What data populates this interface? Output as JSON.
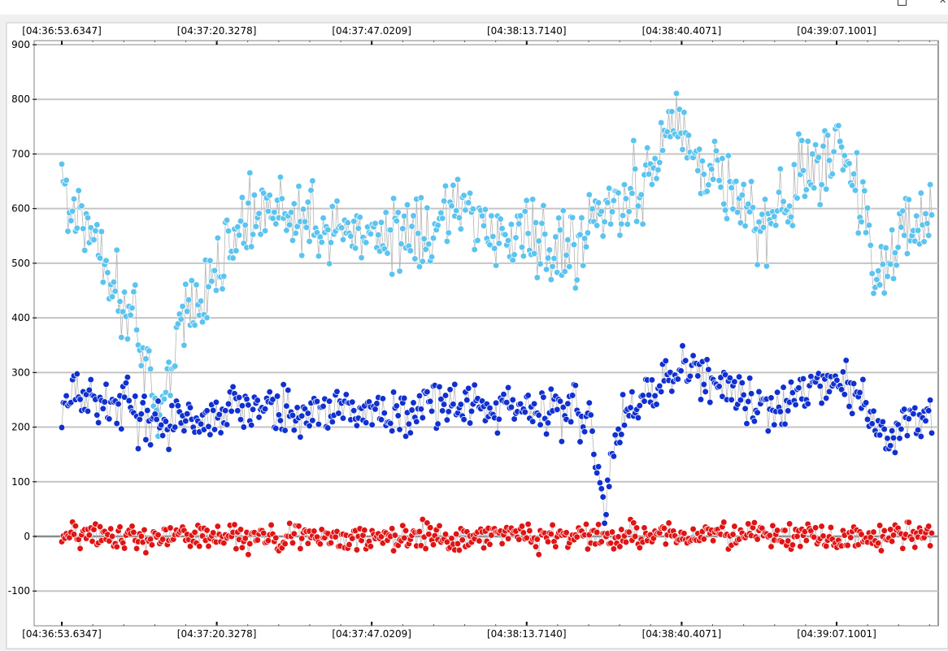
{
  "chart_data": {
    "type": "scatter",
    "ylim": [
      -120,
      900
    ],
    "yticks": [
      900,
      800,
      700,
      600,
      500,
      400,
      300,
      200,
      100,
      0,
      -100
    ],
    "xticks": [
      "[04:36:53.6347]",
      "[04:37:20.3278]",
      "[04:37:47.0209]",
      "[04:38:13.7140]",
      "[04:38:40.4071]",
      "[04:39:07.1001]"
    ],
    "grid": true,
    "markers": "circles joined by thin grey lines",
    "sample_count": 570,
    "series": [
      {
        "color": "#5bc4ef",
        "keypoints": [
          [
            0,
            650
          ],
          [
            3,
            640
          ],
          [
            5,
            560
          ],
          [
            8,
            600
          ],
          [
            12,
            590
          ],
          [
            20,
            560
          ],
          [
            28,
            510
          ],
          [
            35,
            470
          ],
          [
            42,
            420
          ],
          [
            48,
            390
          ],
          [
            52,
            330
          ],
          [
            58,
            300
          ],
          [
            63,
            220
          ],
          [
            68,
            280
          ],
          [
            72,
            310
          ],
          [
            76,
            380
          ],
          [
            85,
            420
          ],
          [
            95,
            450
          ],
          [
            110,
            540
          ],
          [
            125,
            580
          ],
          [
            140,
            600
          ],
          [
            155,
            590
          ],
          [
            170,
            560
          ],
          [
            185,
            560
          ],
          [
            200,
            560
          ],
          [
            220,
            560
          ],
          [
            240,
            560
          ],
          [
            255,
            590
          ],
          [
            265,
            600
          ],
          [
            280,
            560
          ],
          [
            300,
            550
          ],
          [
            320,
            540
          ],
          [
            335,
            530
          ],
          [
            345,
            560
          ],
          [
            355,
            610
          ],
          [
            365,
            620
          ],
          [
            380,
            650
          ],
          [
            392,
            720
          ],
          [
            405,
            760
          ],
          [
            415,
            700
          ],
          [
            430,
            660
          ],
          [
            445,
            610
          ],
          [
            455,
            560
          ],
          [
            465,
            580
          ],
          [
            475,
            600
          ],
          [
            482,
            670
          ],
          [
            495,
            680
          ],
          [
            510,
            700
          ],
          [
            525,
            610
          ],
          [
            530,
            490
          ],
          [
            540,
            500
          ],
          [
            550,
            570
          ],
          [
            569,
            570
          ]
        ],
        "noise": 55
      },
      {
        "color": "#1030d0",
        "keypoints": [
          [
            0,
            240
          ],
          [
            10,
            270
          ],
          [
            20,
            250
          ],
          [
            30,
            240
          ],
          [
            40,
            250
          ],
          [
            48,
            220
          ],
          [
            55,
            200
          ],
          [
            60,
            220
          ],
          [
            66,
            210
          ],
          [
            70,
            200
          ],
          [
            80,
            220
          ],
          [
            95,
            215
          ],
          [
            105,
            230
          ],
          [
            115,
            240
          ],
          [
            125,
            235
          ],
          [
            140,
            230
          ],
          [
            160,
            225
          ],
          [
            180,
            240
          ],
          [
            200,
            235
          ],
          [
            220,
            225
          ],
          [
            240,
            230
          ],
          [
            260,
            240
          ],
          [
            280,
            235
          ],
          [
            300,
            240
          ],
          [
            320,
            225
          ],
          [
            335,
            240
          ],
          [
            345,
            200
          ],
          [
            352,
            110
          ],
          [
            356,
            60
          ],
          [
            360,
            130
          ],
          [
            365,
            210
          ],
          [
            380,
            250
          ],
          [
            395,
            290
          ],
          [
            410,
            310
          ],
          [
            425,
            280
          ],
          [
            440,
            260
          ],
          [
            455,
            230
          ],
          [
            470,
            230
          ],
          [
            480,
            260
          ],
          [
            495,
            280
          ],
          [
            505,
            290
          ],
          [
            515,
            270
          ],
          [
            525,
            240
          ],
          [
            535,
            200
          ],
          [
            542,
            160
          ],
          [
            550,
            220
          ],
          [
            569,
            220
          ]
        ],
        "noise": 35
      },
      {
        "color": "#e01414",
        "keypoints": [
          [
            0,
            0
          ],
          [
            569,
            0
          ]
        ],
        "noise": 20
      }
    ]
  }
}
